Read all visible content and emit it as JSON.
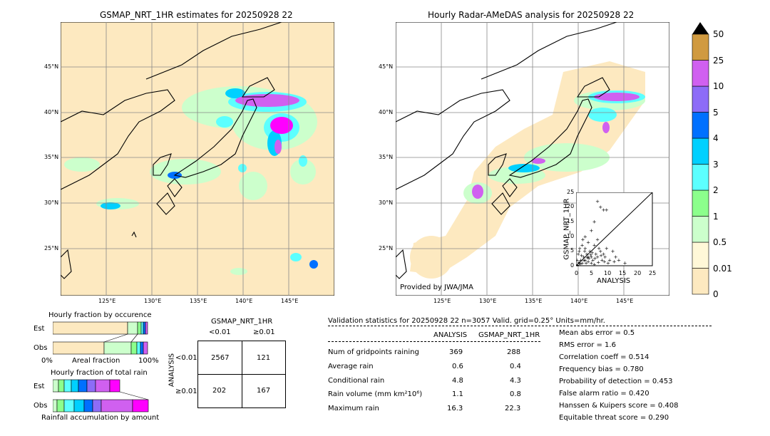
{
  "left_map": {
    "title": "GSMAP_NRT_1HR estimates for 20250928 22",
    "lat_labels": [
      "45°N",
      "40°N",
      "35°N",
      "30°N",
      "25°N"
    ],
    "lon_labels": [
      "125°E",
      "130°E",
      "135°E",
      "140°E",
      "145°E"
    ]
  },
  "right_map": {
    "title": "Hourly Radar-AMeDAS analysis for 20250928 22",
    "lat_labels": [
      "45°N",
      "40°N",
      "35°N",
      "30°N",
      "25°N"
    ],
    "lon_labels": [
      "125°E",
      "130°E",
      "135°E",
      "140°E",
      "145°E"
    ],
    "credit": "Provided by JWA/JMA"
  },
  "scatter": {
    "xlabel": "ANALYSIS",
    "ylabel": "GSMAP_NRT_1HR",
    "ticks": [
      "0",
      "5",
      "10",
      "15",
      "20",
      "25"
    ]
  },
  "colorbar": {
    "labels": [
      "0",
      "0.01",
      "0.5",
      "1",
      "2",
      "3",
      "4",
      "5",
      "10",
      "25",
      "50"
    ],
    "colors": [
      "#fde9c0",
      "#fff8d8",
      "#ccffcc",
      "#8cff8c",
      "#5cffff",
      "#00d0ff",
      "#0070ff",
      "#8d6cf7",
      "#d060f0",
      "#ff00ff",
      "#d09a40"
    ]
  },
  "fraction_occurrence": {
    "title": "Hourly fraction by occurence",
    "rows": [
      "Est",
      "Obs"
    ],
    "xlabel_left": "0%",
    "xlabel_mid": "Areal fraction",
    "xlabel_right": "100%"
  },
  "fraction_total": {
    "title": "Hourly fraction of total rain",
    "rows": [
      "Est",
      "Obs"
    ],
    "xlabel": "Rainfall accumulation by amount"
  },
  "contingency": {
    "title": "GSMAP_NRT_1HR",
    "col_headers": [
      "<0.01",
      "≥0.01"
    ],
    "row_label": "ANALYSIS",
    "row_headers": [
      "<0.01",
      "≥0.01"
    ],
    "cells": [
      [
        "2567",
        "121"
      ],
      [
        "202",
        "167"
      ]
    ]
  },
  "validation": {
    "header": "Validation statistics for 20250928 22  n=3057 Valid. grid=0.25° Units=mm/hr.",
    "col_analysis": "ANALYSIS",
    "col_gsmap": "GSMAP_NRT_1HR",
    "rows": [
      {
        "label": "Num of gridpoints raining",
        "analysis": "369",
        "gsmap": "288"
      },
      {
        "label": "Average rain",
        "analysis": "0.6",
        "gsmap": "0.4"
      },
      {
        "label": "Conditional rain",
        "analysis": "4.8",
        "gsmap": "4.3"
      },
      {
        "label": "Rain volume (mm km²10⁶)",
        "analysis": "1.1",
        "gsmap": "0.8"
      },
      {
        "label": "Maximum rain",
        "analysis": "16.3",
        "gsmap": "22.3"
      }
    ],
    "scores": [
      "Mean abs error =    0.5",
      "RMS error =    1.6",
      "Correlation coeff =  0.514",
      "Frequency bias =  0.780",
      "Probability of detection =  0.453",
      "False alarm ratio =  0.420",
      "Hanssen & Kuipers score =  0.408",
      "Equitable threat score =  0.290"
    ]
  },
  "chart_data": {
    "type": "scatter",
    "title": "",
    "xlabel": "ANALYSIS",
    "ylabel": "GSMAP_NRT_1HR",
    "xlim": [
      0,
      25
    ],
    "ylim": [
      0,
      25
    ],
    "points": [
      [
        0.5,
        0.3
      ],
      [
        1,
        0.8
      ],
      [
        1.5,
        2
      ],
      [
        2,
        1
      ],
      [
        2.5,
        3
      ],
      [
        3,
        2
      ],
      [
        3.5,
        4
      ],
      [
        4,
        1.5
      ],
      [
        4.5,
        5
      ],
      [
        5,
        3
      ],
      [
        5.5,
        2
      ],
      [
        6,
        7
      ],
      [
        6.5,
        4
      ],
      [
        7,
        3
      ],
      [
        7.5,
        6
      ],
      [
        8,
        5
      ],
      [
        8.5,
        2
      ],
      [
        9,
        4
      ],
      [
        9.5,
        3
      ],
      [
        10,
        6
      ],
      [
        11,
        2
      ],
      [
        12,
        5
      ],
      [
        13,
        3
      ],
      [
        14,
        2
      ],
      [
        16,
        1
      ],
      [
        3,
        10
      ],
      [
        4,
        8
      ],
      [
        5,
        12
      ],
      [
        6,
        15
      ],
      [
        7,
        9
      ],
      [
        8,
        20
      ],
      [
        9,
        19
      ],
      [
        10,
        19
      ],
      [
        7,
        22
      ],
      [
        2,
        7
      ],
      [
        1,
        5
      ],
      [
        3,
        6
      ],
      [
        4,
        3
      ],
      [
        5,
        1
      ],
      [
        6,
        0.5
      ],
      [
        0.3,
        2
      ],
      [
        0.7,
        4
      ],
      [
        1.2,
        6
      ],
      [
        2.2,
        9
      ],
      [
        2.8,
        5
      ],
      [
        3.3,
        1
      ],
      [
        4.2,
        2.5
      ],
      [
        5.3,
        4.5
      ],
      [
        6.2,
        2.5
      ],
      [
        7.3,
        1.2
      ],
      [
        8.2,
        3.5
      ],
      [
        9.3,
        1.5
      ],
      [
        10.5,
        1
      ],
      [
        12.5,
        1.5
      ],
      [
        1.8,
        3.5
      ],
      [
        2.6,
        1.8
      ],
      [
        3.7,
        2.8
      ],
      [
        4.8,
        3.8
      ],
      [
        0.9,
        1.2
      ],
      [
        1.4,
        0.6
      ]
    ]
  }
}
